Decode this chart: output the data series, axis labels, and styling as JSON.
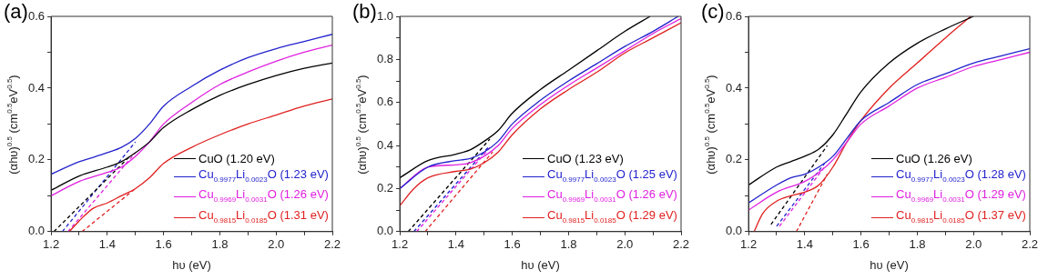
{
  "chart_data": [
    {
      "type": "line",
      "title": "(a)",
      "xlabel": "hυ (eV)",
      "ylabel": "(αhυ)$^{0.5}$ (cm$^{0.5}$eV$^{0.5}$)",
      "xlim": [
        1.2,
        2.2
      ],
      "ylim": [
        0,
        0.6
      ],
      "xticks": [
        1.2,
        {
          "value": 1.3,
          "label": null
        },
        1.4,
        {
          "value": 1.5,
          "label": null
        },
        1.6,
        {
          "value": 1.7,
          "label": null
        },
        1.8,
        {
          "value": 1.9,
          "label": null
        },
        {
          "value": 2,
          "label": "2.0"
        },
        {
          "value": 2.1,
          "label": null
        },
        2.2
      ],
      "yticks": [
        {
          "value": 0,
          "label": "0.0"
        },
        {
          "value": 0.1,
          "label": null
        },
        0.2,
        {
          "value": 0.3,
          "label": null
        },
        0.4,
        {
          "value": 0.5,
          "label": null
        },
        0.6
      ],
      "legend": "bottom right",
      "series": [
        {
          "name": "CuO (1.20 eV)",
          "color": "#000000",
          "x": [
            1.2,
            1.3,
            1.4,
            1.45,
            1.5,
            1.55,
            1.6,
            1.7,
            1.8,
            1.9,
            2.0,
            2.1,
            2.2
          ],
          "values": [
            0.115,
            0.155,
            0.18,
            0.195,
            0.22,
            0.25,
            0.29,
            0.34,
            0.38,
            0.41,
            0.435,
            0.455,
            0.47
          ]
        },
        {
          "name": "Cu$_{0.9977}$Li$_{0.0023}$O (1.23 eV)",
          "color": "#2222cc",
          "x": [
            1.2,
            1.3,
            1.35,
            1.4,
            1.45,
            1.5,
            1.55,
            1.6,
            1.7,
            1.8,
            1.9,
            2.0,
            2.1,
            2.2
          ],
          "values": [
            0.16,
            0.195,
            0.207,
            0.22,
            0.235,
            0.26,
            0.3,
            0.35,
            0.405,
            0.45,
            0.485,
            0.51,
            0.53,
            0.55
          ]
        },
        {
          "name": "Cu$_{0.9969}$Li$_{0.0031}$O (1.26 eV)",
          "color": "#e020e0",
          "x": [
            1.2,
            1.3,
            1.4,
            1.45,
            1.5,
            1.55,
            1.6,
            1.7,
            1.8,
            1.9,
            2.0,
            2.1,
            2.2
          ],
          "values": [
            0.1,
            0.14,
            0.165,
            0.18,
            0.21,
            0.25,
            0.3,
            0.36,
            0.41,
            0.445,
            0.475,
            0.5,
            0.52
          ]
        },
        {
          "name": "Cu$_{0.9815}$Li$_{0.0185}$O (1.31 eV)",
          "color": "#e02020",
          "x": [
            1.265,
            1.3,
            1.35,
            1.4,
            1.45,
            1.5,
            1.55,
            1.6,
            1.7,
            1.8,
            1.9,
            2.0,
            2.1,
            2.2
          ],
          "values": [
            0.0,
            0.03,
            0.065,
            0.08,
            0.1,
            0.12,
            0.15,
            0.19,
            0.235,
            0.27,
            0.3,
            0.325,
            0.35,
            0.37
          ]
        },
        {
          "type": "line",
          "line_style": "dashed",
          "color": "#000000",
          "x": [
            1.21,
            1.48
          ],
          "values": [
            0,
            0.21
          ]
        },
        {
          "type": "line",
          "line_style": "dashed",
          "color": "#2222cc",
          "x": [
            1.24,
            1.5
          ],
          "values": [
            0,
            0.25
          ]
        },
        {
          "type": "line",
          "line_style": "dashed",
          "color": "#e020e0",
          "x": [
            1.26,
            1.5
          ],
          "values": [
            0,
            0.22
          ]
        },
        {
          "type": "line",
          "line_style": "dashed",
          "color": "#e02020",
          "x": [
            1.31,
            1.5
          ],
          "values": [
            0,
            0.12
          ]
        }
      ]
    },
    {
      "type": "line",
      "title": "(b)",
      "xlabel": "hυ (eV)",
      "ylabel": "(αhυ)$^{0.5}$ (cm$^{0.5}$eV$^{0.5}$)",
      "xlim": [
        1.2,
        2.2
      ],
      "ylim": [
        0,
        1.0
      ],
      "xticks": [
        1.2,
        {
          "value": 1.3,
          "label": null
        },
        1.4,
        {
          "value": 1.5,
          "label": null
        },
        1.6,
        {
          "value": 1.7,
          "label": null
        },
        1.8,
        {
          "value": 1.9,
          "label": null
        },
        {
          "value": 2,
          "label": "2.0"
        },
        {
          "value": 2.1,
          "label": null
        },
        2.2
      ],
      "yticks": [
        {
          "value": 0,
          "label": "0.0"
        },
        {
          "value": 0.1,
          "label": null
        },
        0.2,
        {
          "value": 0.3,
          "label": null
        },
        0.4,
        {
          "value": 0.5,
          "label": null
        },
        0.6,
        {
          "value": 0.7,
          "label": null
        },
        0.8,
        {
          "value": 0.9,
          "label": null
        },
        {
          "value": 1,
          "label": "1.0"
        }
      ],
      "legend": "bottom right",
      "series": [
        {
          "name": "CuO (1.23 eV)",
          "color": "#000000",
          "x": [
            1.2,
            1.3,
            1.4,
            1.45,
            1.5,
            1.55,
            1.6,
            1.7,
            1.8,
            1.9,
            2.0,
            2.09
          ],
          "values": [
            0.25,
            0.33,
            0.36,
            0.38,
            0.42,
            0.47,
            0.55,
            0.66,
            0.75,
            0.84,
            0.93,
            1.0
          ]
        },
        {
          "name": "Cu$_{0.9977}$Li$_{0.0023}$O (1.25 eV)",
          "color": "#2222cc",
          "x": [
            1.2,
            1.3,
            1.4,
            1.45,
            1.5,
            1.55,
            1.6,
            1.7,
            1.8,
            1.9,
            2.0,
            2.1,
            2.19
          ],
          "values": [
            0.2,
            0.3,
            0.33,
            0.34,
            0.37,
            0.42,
            0.5,
            0.61,
            0.7,
            0.78,
            0.86,
            0.93,
            1.0
          ]
        },
        {
          "name": "Cu$_{0.9969}$Li$_{0.0031}$O (1.26 eV)",
          "color": "#e020e0",
          "x": [
            1.2,
            1.3,
            1.4,
            1.45,
            1.5,
            1.55,
            1.6,
            1.7,
            1.8,
            1.9,
            2.0,
            2.1,
            2.2
          ],
          "values": [
            0.2,
            0.3,
            0.31,
            0.32,
            0.35,
            0.4,
            0.48,
            0.59,
            0.68,
            0.76,
            0.84,
            0.92,
            0.99
          ]
        },
        {
          "name": "Cu$_{0.9815}$Li$_{0.0185}$O (1.29 eV)",
          "color": "#e02020",
          "x": [
            1.2,
            1.25,
            1.3,
            1.4,
            1.45,
            1.5,
            1.55,
            1.6,
            1.7,
            1.8,
            1.9,
            2.0,
            2.1,
            2.2
          ],
          "values": [
            0.12,
            0.2,
            0.25,
            0.28,
            0.29,
            0.32,
            0.37,
            0.45,
            0.57,
            0.66,
            0.74,
            0.83,
            0.9,
            0.97
          ]
        },
        {
          "type": "line",
          "line_style": "dashed",
          "color": "#000000",
          "x": [
            1.23,
            1.52
          ],
          "values": [
            0,
            0.43
          ]
        },
        {
          "type": "line",
          "line_style": "dashed",
          "color": "#2222cc",
          "x": [
            1.25,
            1.52
          ],
          "values": [
            0,
            0.4
          ]
        },
        {
          "type": "line",
          "line_style": "dashed",
          "color": "#e020e0",
          "x": [
            1.26,
            1.52
          ],
          "values": [
            0,
            0.39
          ]
        },
        {
          "type": "line",
          "line_style": "dashed",
          "color": "#e02020",
          "x": [
            1.29,
            1.53
          ],
          "values": [
            0,
            0.37
          ]
        }
      ]
    },
    {
      "type": "line",
      "title": "(c)",
      "xlabel": "hυ (eV)",
      "ylabel": "(αhυ)$^{0.5}$ (cm$^{0.5}$eV$^{0.5}$)",
      "xlim": [
        1.2,
        2.2
      ],
      "ylim": [
        0,
        0.6
      ],
      "xticks": [
        1.2,
        {
          "value": 1.3,
          "label": null
        },
        1.4,
        {
          "value": 1.5,
          "label": null
        },
        1.6,
        {
          "value": 1.7,
          "label": null
        },
        1.8,
        {
          "value": 1.9,
          "label": null
        },
        {
          "value": 2,
          "label": "2.0"
        },
        {
          "value": 2.1,
          "label": null
        },
        2.2
      ],
      "yticks": [
        {
          "value": 0,
          "label": "0.0"
        },
        {
          "value": 0.1,
          "label": null
        },
        0.2,
        {
          "value": 0.3,
          "label": null
        },
        0.4,
        {
          "value": 0.5,
          "label": null
        },
        0.6
      ],
      "legend": "bottom right",
      "series": [
        {
          "name": "CuO (1.26 eV)",
          "color": "#000000",
          "x": [
            1.2,
            1.3,
            1.35,
            1.4,
            1.45,
            1.5,
            1.55,
            1.6,
            1.7,
            1.8,
            1.9,
            2.0
          ],
          "values": [
            0.13,
            0.18,
            0.195,
            0.21,
            0.23,
            0.27,
            0.33,
            0.39,
            0.47,
            0.525,
            0.565,
            0.6
          ]
        },
        {
          "name": "Cu$_{0.9977}$Li$_{0.0023}$O (1.28 eV)",
          "color": "#2222cc",
          "x": [
            1.2,
            1.3,
            1.35,
            1.4,
            1.45,
            1.5,
            1.55,
            1.6,
            1.7,
            1.8,
            1.9,
            2.0,
            2.1,
            2.2
          ],
          "values": [
            0.08,
            0.13,
            0.15,
            0.16,
            0.18,
            0.21,
            0.26,
            0.31,
            0.36,
            0.41,
            0.44,
            0.47,
            0.49,
            0.51
          ]
        },
        {
          "name": "Cu$_{0.9969}$Li$_{0.0031}$O (1.29 eV)",
          "color": "#e020e0",
          "x": [
            1.2,
            1.3,
            1.4,
            1.45,
            1.5,
            1.55,
            1.6,
            1.7,
            1.8,
            1.9,
            2.0,
            2.1,
            2.2
          ],
          "values": [
            0.06,
            0.11,
            0.14,
            0.165,
            0.2,
            0.25,
            0.3,
            0.35,
            0.4,
            0.43,
            0.46,
            0.48,
            0.5
          ]
        },
        {
          "name": "Cu$_{0.9815}$Li$_{0.0185}$O (1.37 eV)",
          "color": "#e02020",
          "x": [
            1.22,
            1.25,
            1.3,
            1.35,
            1.4,
            1.45,
            1.5,
            1.55,
            1.6,
            1.7,
            1.8,
            1.9,
            1.99
          ],
          "values": [
            0.0,
            0.05,
            0.085,
            0.1,
            0.11,
            0.13,
            0.18,
            0.25,
            0.31,
            0.4,
            0.47,
            0.54,
            0.6
          ]
        },
        {
          "type": "line",
          "line_style": "dashed",
          "color": "#000000",
          "x": [
            1.28,
            1.48
          ],
          "values": [
            0.02,
            0.24
          ]
        },
        {
          "type": "line",
          "line_style": "dashed",
          "color": "#2222cc",
          "x": [
            1.3,
            1.47
          ],
          "values": [
            0.015,
            0.19
          ]
        },
        {
          "type": "line",
          "line_style": "dashed",
          "color": "#e020e0",
          "x": [
            1.31,
            1.47
          ],
          "values": [
            0.015,
            0.18
          ]
        },
        {
          "type": "line",
          "line_style": "dashed",
          "color": "#e02020",
          "x": [
            1.37,
            1.48
          ],
          "values": [
            0,
            0.16
          ]
        }
      ]
    }
  ]
}
